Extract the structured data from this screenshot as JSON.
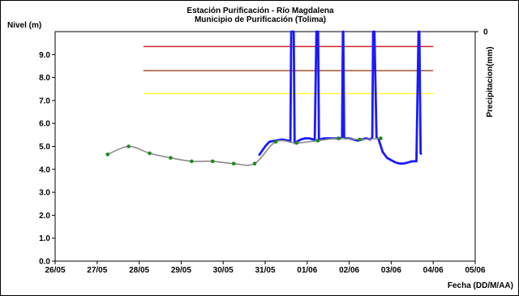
{
  "chart_data": {
    "type": "line",
    "title": "Estación Purificación - Río Magdalena",
    "subtitle": "Municipio de Purificación (Tolima)",
    "ylabel": "Nivel (m)",
    "y2label": "Precipitacion(mm)",
    "xlabel": "Fecha (DD/M/AA)",
    "ylim": [
      0,
      10
    ],
    "y_ticks": [
      "0.0",
      "1.0",
      "2.0",
      "3.0",
      "4.0",
      "5.0",
      "6.0",
      "7.0",
      "8.0",
      "9.0"
    ],
    "y2_ticks": [
      "0"
    ],
    "x_ticks": [
      "26/05",
      "27/05",
      "28/05",
      "29/05",
      "30/05",
      "31/05",
      "01/06",
      "02/06",
      "03/06",
      "04/06",
      "05/06"
    ],
    "xlim_days": [
      0,
      10
    ],
    "grid": false,
    "thresholds": [
      {
        "value": 9.35,
        "color": "#d62020"
      },
      {
        "value": 8.3,
        "color": "#a0522d"
      },
      {
        "value": 7.3,
        "color": "#ffff33"
      }
    ],
    "series": [
      {
        "role": "daily-readings",
        "color": "#8a8a8a",
        "marker_color": "#1a8a1a",
        "x": [
          1.25,
          1.75,
          2.25,
          2.75,
          3.25,
          3.75,
          4.25,
          4.75,
          5.25,
          5.75,
          6.25,
          6.75,
          7.25,
          7.75
        ],
        "y": [
          4.65,
          5.0,
          4.7,
          4.5,
          4.35,
          4.35,
          4.25,
          4.25,
          5.2,
          5.15,
          5.25,
          5.35,
          5.3,
          5.35
        ]
      },
      {
        "role": "continuous-sensor",
        "color": "#1a1aff",
        "x": [
          4.85,
          5.0,
          5.1,
          5.25,
          5.4,
          5.55,
          5.6,
          5.62,
          5.68,
          5.7,
          5.75,
          5.85,
          5.95,
          6.05,
          6.15,
          6.18,
          6.22,
          6.26,
          6.28,
          6.3,
          6.4,
          6.5,
          6.6,
          6.7,
          6.8,
          6.83,
          6.85,
          6.86,
          6.88,
          6.9,
          7.0,
          7.1,
          7.2,
          7.3,
          7.4,
          7.5,
          7.55,
          7.57,
          7.6,
          7.65,
          7.7,
          7.8,
          7.9,
          8.0,
          8.1,
          8.2,
          8.3,
          8.4,
          8.5,
          8.6,
          8.65,
          8.67,
          8.7,
          8.72
        ],
        "y": [
          4.6,
          5.0,
          5.2,
          5.25,
          5.3,
          5.25,
          5.2,
          10.0,
          10.0,
          5.15,
          5.2,
          5.3,
          5.35,
          5.35,
          5.3,
          5.25,
          10.0,
          10.0,
          5.25,
          5.3,
          5.35,
          5.35,
          5.35,
          5.35,
          5.35,
          5.4,
          10.0,
          10.0,
          5.4,
          5.35,
          5.35,
          5.3,
          5.25,
          5.3,
          5.35,
          5.3,
          5.4,
          10.0,
          10.0,
          5.4,
          5.3,
          4.75,
          4.5,
          4.4,
          4.3,
          4.25,
          4.25,
          4.3,
          4.35,
          4.35,
          10.0,
          10.0,
          4.7,
          4.65
        ]
      }
    ]
  }
}
